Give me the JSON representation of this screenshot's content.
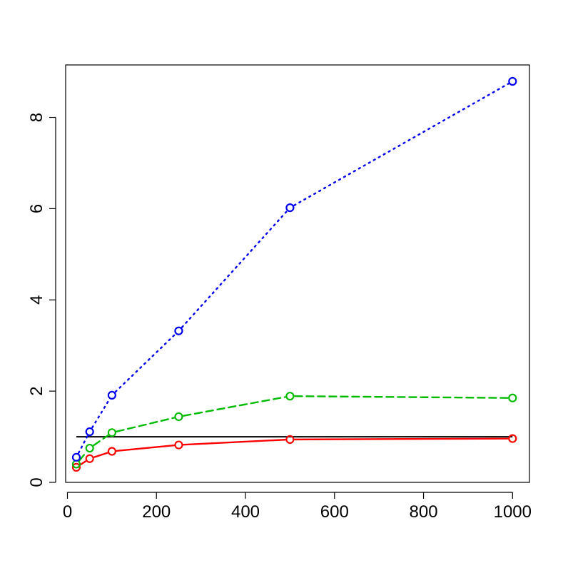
{
  "chart_data": {
    "type": "line",
    "title": "",
    "xlabel": "",
    "ylabel": "",
    "xlim": [
      -4,
      1038
    ],
    "ylim": [
      0,
      9.15
    ],
    "x_ticks": [
      0,
      200,
      400,
      600,
      800,
      1000
    ],
    "y_ticks": [
      0,
      2,
      4,
      6,
      8
    ],
    "x_tick_labels": [
      "0",
      "200",
      "400",
      "600",
      "800",
      "1000"
    ],
    "y_tick_labels": [
      "0",
      "2",
      "4",
      "6",
      "8"
    ],
    "grid": false,
    "legend": "none",
    "reference_line": {
      "y": 1.0,
      "x_range": [
        20,
        1000
      ],
      "color": "#000000"
    },
    "x": [
      20,
      50,
      100,
      250,
      500,
      1000
    ],
    "series": [
      {
        "color": "#ff0000",
        "line_style": "solid",
        "marker": "open-circle",
        "values": [
          0.33,
          0.52,
          0.68,
          0.82,
          0.94,
          0.96
        ]
      },
      {
        "color": "#00bb00",
        "line_style": "dashed",
        "marker": "open-circle",
        "values": [
          0.4,
          0.75,
          1.09,
          1.44,
          1.89,
          1.85
        ]
      },
      {
        "color": "#0000ee",
        "line_style": "dotted",
        "marker": "open-circle",
        "values": [
          0.55,
          1.11,
          1.91,
          3.32,
          6.02,
          8.79
        ]
      }
    ]
  }
}
